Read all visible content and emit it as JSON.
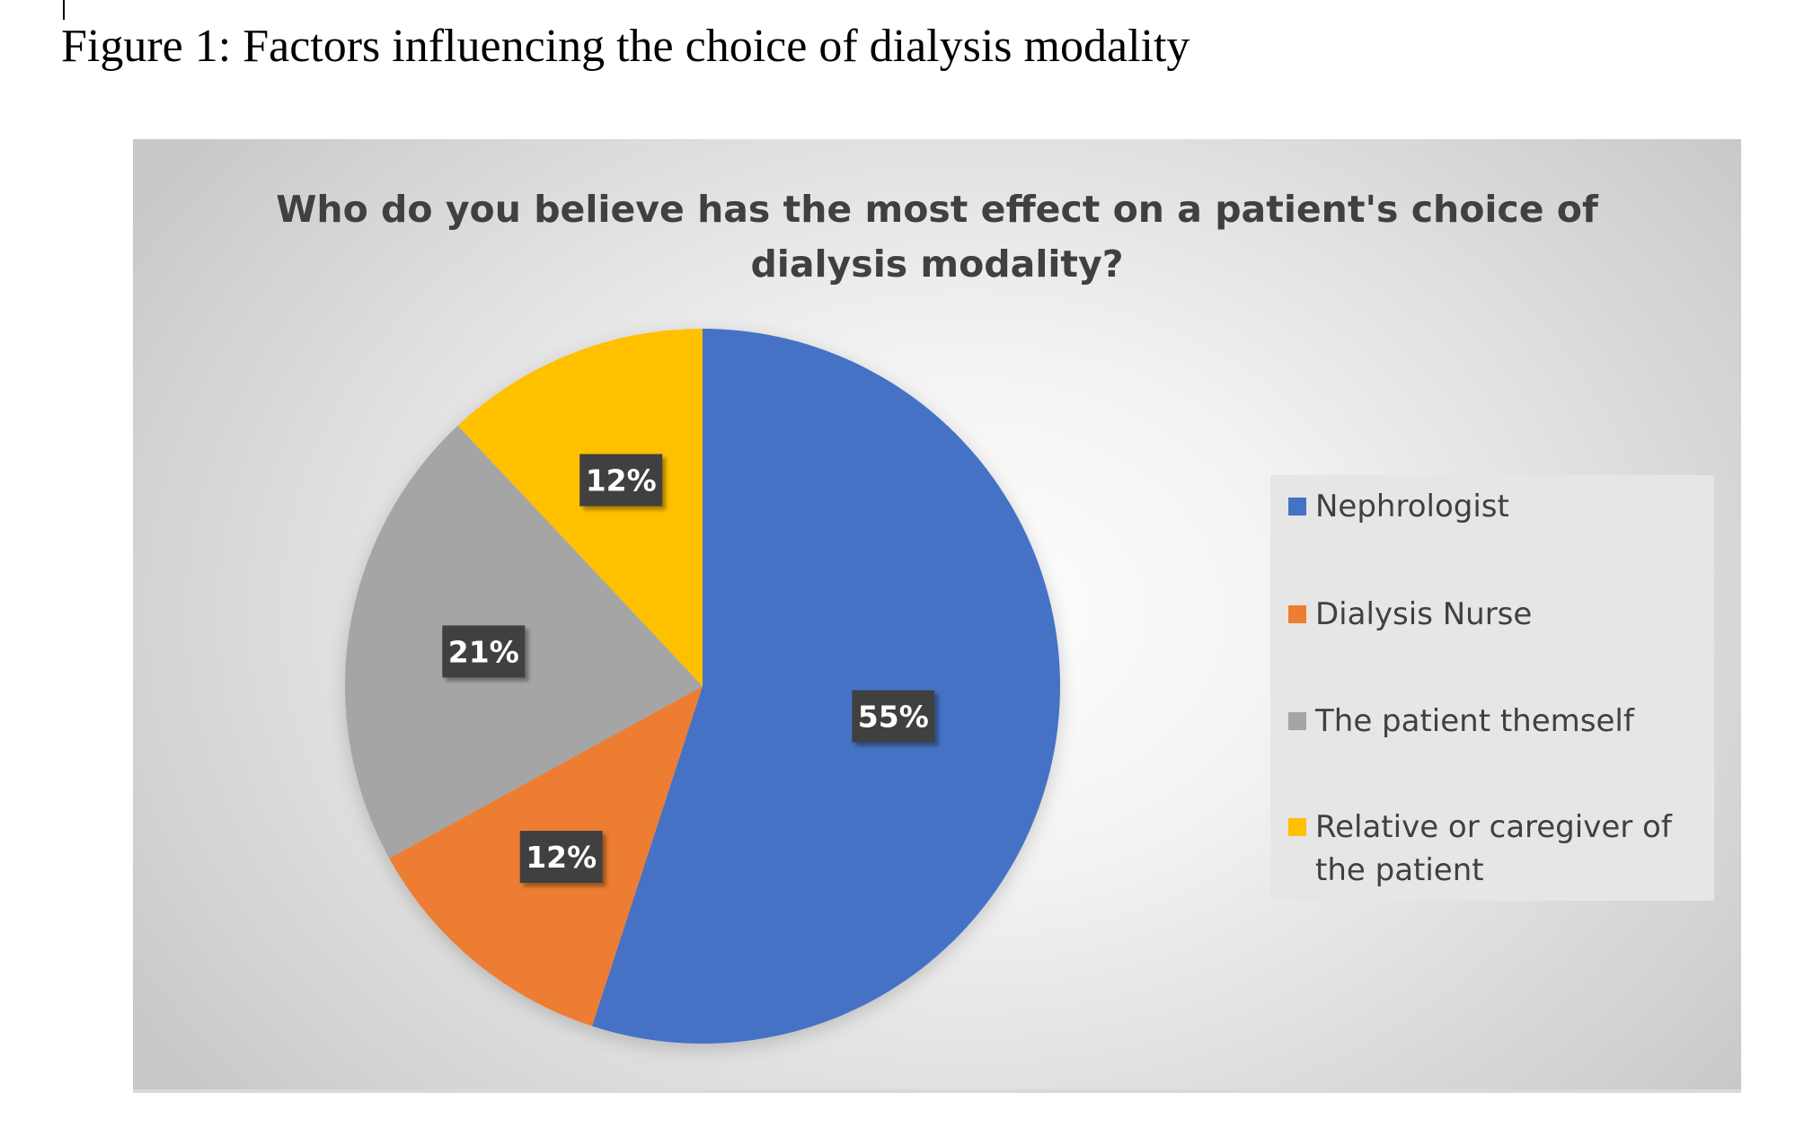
{
  "figure_caption": "Figure 1: Factors influencing the choice of dialysis modality",
  "chart_data": {
    "type": "pie",
    "title": "Who do you believe has the most effect on a patient's choice of dialysis modality?",
    "title_lines": [
      "Who do you believe has the most effect on a patient's choice of",
      "dialysis modality?"
    ],
    "categories": [
      "Nephrologist",
      "Dialysis Nurse",
      "The patient themself",
      "Relative or caregiver of the patient"
    ],
    "values": [
      55,
      12,
      21,
      12
    ],
    "data_labels": [
      "55%",
      "12%",
      "21%",
      "12%"
    ],
    "unit": "%",
    "colors": [
      "#4472c4",
      "#ed7d31",
      "#a5a5a5",
      "#ffc000"
    ],
    "legend_placement": "right",
    "start_angle": "12 o'clock, clockwise",
    "label_style": {
      "background": "#404040",
      "text_color": "#ffffff"
    }
  }
}
